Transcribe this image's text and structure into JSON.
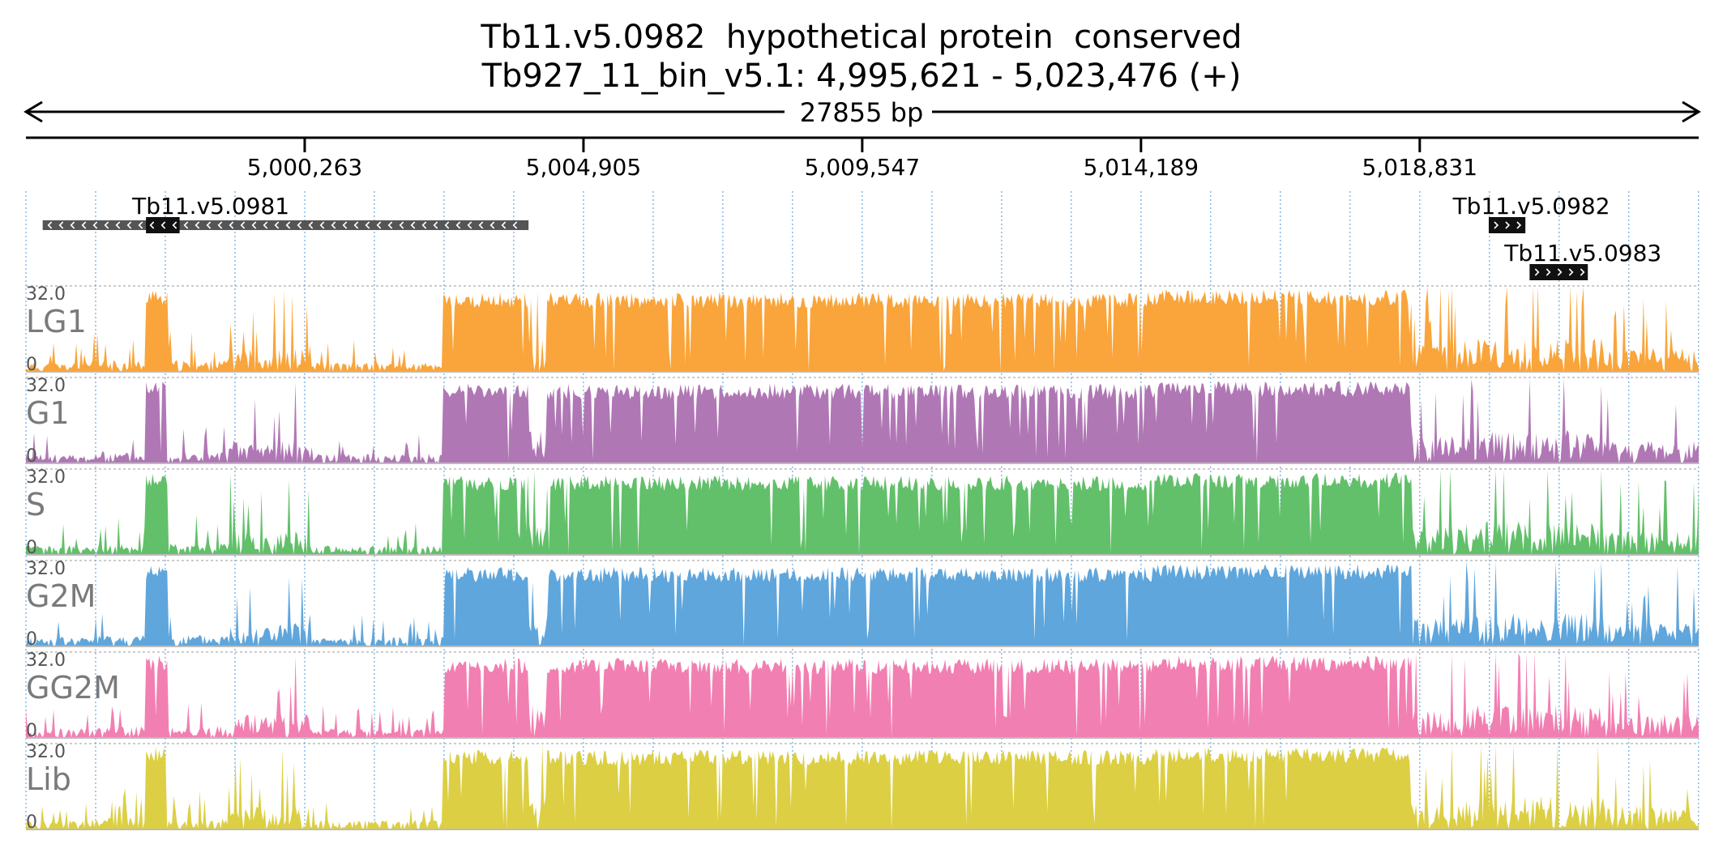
{
  "title": {
    "line1": "Tb11.v5.0982  hypothetical protein  conserved",
    "line2": "Tb927_11_bin_v5.1: 4,995,621 - 5,023,476 (+)"
  },
  "span_label": "27855 bp",
  "region": {
    "chrom": "Tb927_11_bin_v5.1",
    "start": 4995621,
    "end": 5023476,
    "strand": "+"
  },
  "ruler": {
    "ticks": [
      {
        "pos": 5000263,
        "label": "5,000,263"
      },
      {
        "pos": 5004905,
        "label": "5,004,905"
      },
      {
        "pos": 5009547,
        "label": "5,009,547"
      },
      {
        "pos": 5014189,
        "label": "5,014,189"
      },
      {
        "pos": 5018831,
        "label": "5,018,831"
      }
    ]
  },
  "genes": [
    {
      "name": "Tb11.v5.0981",
      "start": 4995900,
      "end": 5003990,
      "strand": "-",
      "cds_start": 4997620,
      "cds_end": 4998180,
      "row": 0
    },
    {
      "name": "Tb11.v5.0982",
      "start": 5019980,
      "end": 5020590,
      "strand": "+",
      "cds_start": 5019980,
      "cds_end": 5020590,
      "row": 0
    },
    {
      "name": "Tb11.v5.0983",
      "start": 5020660,
      "end": 5021630,
      "strand": "+",
      "cds_start": 5020660,
      "cds_end": 5021630,
      "row": 1
    }
  ],
  "track_max_label": "32.0",
  "track_min_label": "0",
  "tracks": [
    {
      "name": "LG1",
      "color": "#f9a53b",
      "seed": 11
    },
    {
      "name": "G1",
      "color": "#b077b5",
      "seed": 23
    },
    {
      "name": "S",
      "color": "#62c06a",
      "seed": 37
    },
    {
      "name": "G2M",
      "color": "#5fa6dc",
      "seed": 41
    },
    {
      "name": "GG2M",
      "color": "#f27fb2",
      "seed": 53
    },
    {
      "name": "Lib",
      "color": "#dccf44",
      "seed": 67
    }
  ],
  "coverage_profile": {
    "note_units": "genomic coordinate ranges with approximate coverage level (0-32, saturates at 32)",
    "segments": [
      {
        "start": 4995621,
        "end": 4996650,
        "level": 4,
        "spiky": true
      },
      {
        "start": 4996650,
        "end": 4997620,
        "level": 5,
        "spiky": true
      },
      {
        "start": 4997620,
        "end": 4998000,
        "level": 31,
        "spiky": false
      },
      {
        "start": 4998000,
        "end": 4998950,
        "level": 5,
        "spiky": true
      },
      {
        "start": 4998950,
        "end": 5000330,
        "level": 10,
        "spiky": true
      },
      {
        "start": 5000330,
        "end": 5002550,
        "level": 4,
        "spiky": true
      },
      {
        "start": 5002550,
        "end": 5003990,
        "level": 30,
        "spiky": false
      },
      {
        "start": 5003990,
        "end": 5004300,
        "level": 14,
        "spiky": true
      },
      {
        "start": 5004300,
        "end": 5009400,
        "level": 30,
        "spiky": false
      },
      {
        "start": 5009400,
        "end": 5014400,
        "level": 30,
        "spiky": false
      },
      {
        "start": 5014400,
        "end": 5018700,
        "level": 31,
        "spiky": false
      },
      {
        "start": 5018700,
        "end": 5019500,
        "level": 12,
        "spiky": true
      },
      {
        "start": 5019500,
        "end": 5021900,
        "level": 14,
        "spiky": true
      },
      {
        "start": 5021900,
        "end": 5023476,
        "level": 10,
        "spiky": true
      }
    ]
  },
  "colors": {
    "axis": "#000000",
    "grid": "#6aa8e0",
    "gene_bar": "#555555",
    "cds_box": "#111111",
    "track_label": "#7a7a7a",
    "track_border": "#bbbbbb"
  }
}
